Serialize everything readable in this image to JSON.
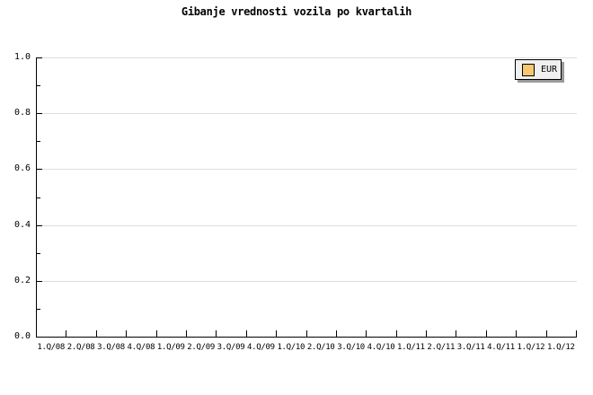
{
  "title": "Gibanje vrednosti vozila po kvartalih",
  "legend": {
    "position": "top-right",
    "items": [
      {
        "label": "EUR",
        "swatch_fill": "#F8C871",
        "swatch_border": "#000000"
      }
    ]
  },
  "axes": {
    "y_tick_labels": [
      "0.0",
      "0.2",
      "0.4",
      "0.6",
      "0.8",
      "1.0"
    ],
    "x_tick_labels": [
      "1.Q/08",
      "2.Q/08",
      "3.Q/08",
      "4.Q/08",
      "1.Q/09",
      "2.Q/09",
      "3.Q/09",
      "4.Q/09",
      "1.Q/10",
      "2.Q/10",
      "3.Q/10",
      "4.Q/10",
      "1.Q/11",
      "2.Q/11",
      "3.Q/11",
      "4.Q/11",
      "1.Q/12",
      "1.Q/12"
    ]
  },
  "colors": {
    "background": "#FFFFFF",
    "grid": "#DCDCDC",
    "axis": "#000000",
    "text": "#000000",
    "legend_fill": "#F0F0F0",
    "legend_border": "#000000",
    "legend_shadow": "#999999"
  },
  "chart_data": {
    "type": "line",
    "title": "Gibanje vrednosti vozila po kvartalih",
    "categories": [
      "1.Q/08",
      "2.Q/08",
      "3.Q/08",
      "4.Q/08",
      "1.Q/09",
      "2.Q/09",
      "3.Q/09",
      "4.Q/09",
      "1.Q/10",
      "2.Q/10",
      "3.Q/10",
      "4.Q/10",
      "1.Q/11",
      "2.Q/11",
      "3.Q/11",
      "4.Q/11",
      "1.Q/12",
      "1.Q/12"
    ],
    "series": [
      {
        "name": "EUR",
        "color": "#F8C871",
        "values": []
      }
    ],
    "xlabel": "",
    "ylabel": "",
    "ylim": [
      0,
      1.0
    ],
    "y_major_step": 0.2,
    "y_minor_step": 0.1,
    "grid": true,
    "grid_axis": "y",
    "legend_position": "top-right",
    "plot_empty": true
  }
}
